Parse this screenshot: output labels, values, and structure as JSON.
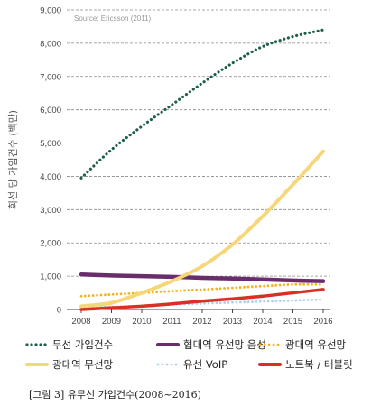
{
  "chart_data": {
    "type": "line",
    "source": "Source: Ericsson (2011)",
    "ylabel": "회선 당 가입건수 (백만)",
    "xlabel": "",
    "ylim": [
      0,
      9000
    ],
    "yticks": [
      "0",
      "1,000",
      "2,000",
      "3,000",
      "4,000",
      "5,000",
      "6,000",
      "7,000",
      "8,000",
      "9,000"
    ],
    "categories": [
      "2008",
      "2009",
      "2010",
      "2011",
      "2012",
      "2013",
      "2014",
      "2015",
      "2016"
    ],
    "grid": "horizontal dashed",
    "legend_position": "bottom",
    "series": [
      {
        "name": "무선 가입건수",
        "color": "#1f5e4c",
        "style": "dotted",
        "values": [
          3950,
          4800,
          5500,
          6150,
          6800,
          7400,
          7900,
          8200,
          8400
        ]
      },
      {
        "name": "협대역 유선망 음성",
        "color": "#6a2d6b",
        "style": "solid",
        "values": [
          1050,
          1020,
          1000,
          980,
          950,
          930,
          900,
          870,
          850
        ]
      },
      {
        "name": "광대역 유선망",
        "color": "#f2b51c",
        "style": "dotted",
        "values": [
          400,
          450,
          500,
          550,
          600,
          650,
          700,
          750,
          750
        ]
      },
      {
        "name": "광대역 무선망",
        "color": "#f7d67a",
        "style": "solid",
        "values": [
          100,
          200,
          500,
          850,
          1300,
          1950,
          2800,
          3750,
          4750
        ]
      },
      {
        "name": "유선 VoIP",
        "color": "#a9d3ec",
        "style": "dotted",
        "values": [
          50,
          80,
          110,
          150,
          180,
          210,
          240,
          270,
          300
        ]
      },
      {
        "name": "노트북 / 태블릿",
        "color": "#d93025",
        "style": "solid",
        "values": [
          0,
          50,
          100,
          170,
          250,
          320,
          400,
          500,
          600
        ]
      }
    ]
  },
  "caption": "[그림 3] 유무선 가입건수(2008~2016)"
}
